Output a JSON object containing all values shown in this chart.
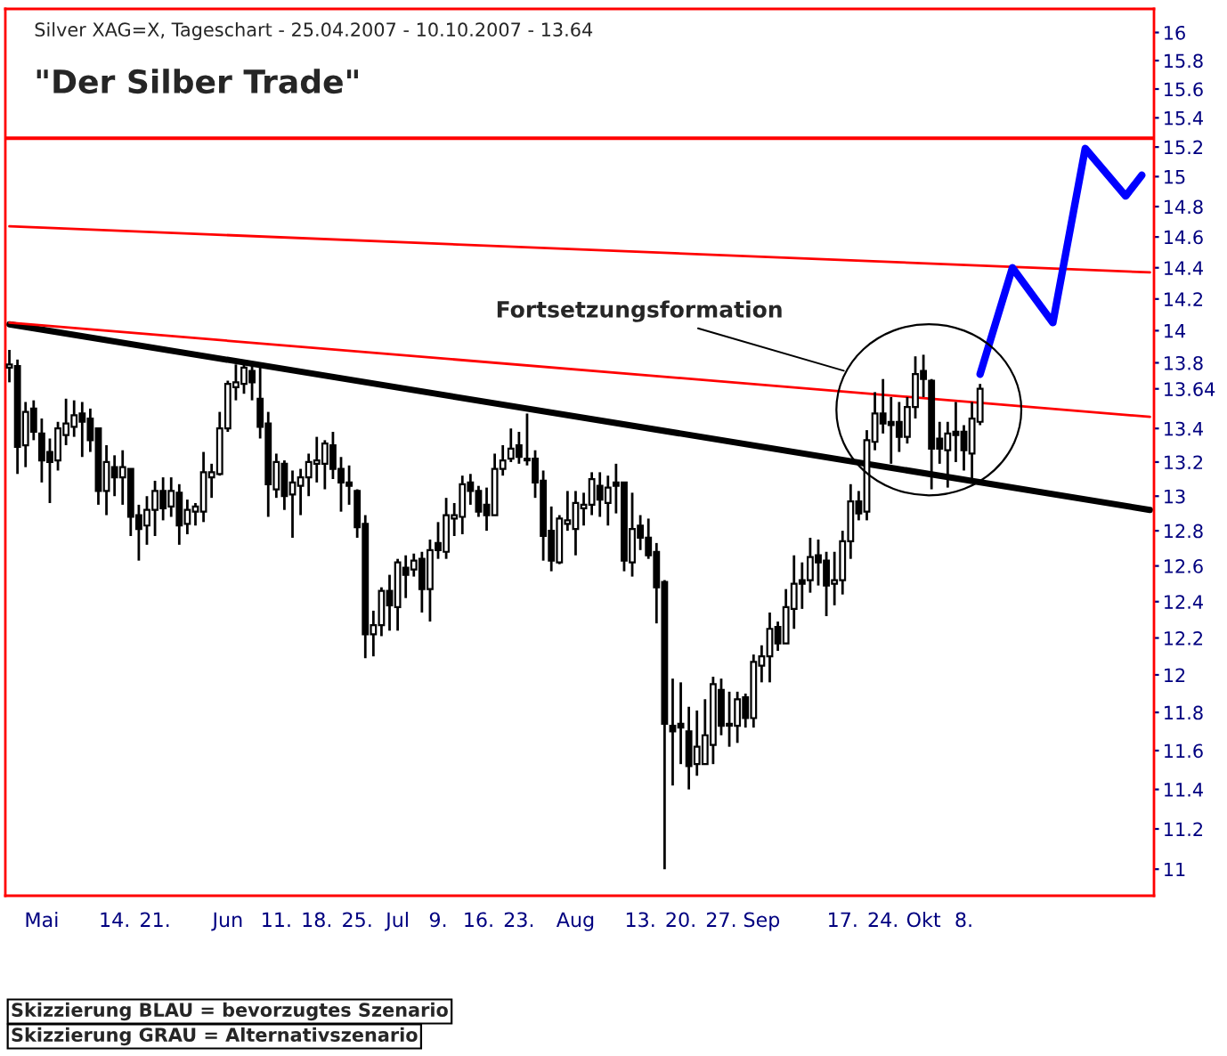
{
  "chart_data": {
    "type": "candlestick",
    "title": "\"Der Silber Trade\"",
    "subtitle": "Silver XAG=X, Tageschart - 25.04.2007 - 10.10.2007 - 13.64",
    "annotations": [
      "Fortsetzungsformation",
      "Skizzierung BLAU = bevorzugtes Szenario",
      "Skizzierung GRAU = Alternativszenario"
    ],
    "categories": [
      null,
      null,
      null,
      null,
      "Mai",
      null,
      null,
      null,
      null,
      null,
      null,
      null,
      null,
      "14.",
      null,
      null,
      null,
      null,
      "21.",
      null,
      null,
      null,
      null,
      null,
      null,
      null,
      null,
      "Jun",
      null,
      null,
      null,
      null,
      null,
      "11.",
      null,
      null,
      null,
      null,
      "18.",
      null,
      null,
      null,
      null,
      "25.",
      null,
      null,
      null,
      null,
      "Jul",
      null,
      null,
      null,
      null,
      "9.",
      null,
      null,
      null,
      null,
      "16.",
      null,
      null,
      null,
      null,
      "23.",
      null,
      null,
      null,
      null,
      null,
      null,
      "Aug",
      null,
      null,
      null,
      null,
      null,
      null,
      null,
      "13.",
      null,
      null,
      null,
      null,
      "20.",
      null,
      null,
      null,
      null,
      "27.",
      null,
      null,
      null,
      null,
      "Sep",
      null,
      null,
      null,
      null,
      null,
      null,
      null,
      null,
      null,
      "17.",
      null,
      null,
      null,
      null,
      "24.",
      null,
      null,
      null,
      null,
      "Okt",
      null,
      null,
      null,
      null,
      "8.",
      null,
      null,
      null,
      null,
      null,
      null,
      null,
      null,
      null,
      null,
      null,
      null,
      null,
      null,
      null,
      null,
      null,
      null,
      null,
      null,
      null,
      null,
      null
    ],
    "ohlc": [
      [
        13.77,
        13.88,
        13.68,
        13.79
      ],
      [
        13.78,
        13.82,
        13.13,
        13.29
      ],
      [
        13.3,
        13.56,
        13.17,
        13.5
      ],
      [
        13.52,
        13.57,
        13.33,
        13.38
      ],
      [
        13.37,
        13.46,
        13.08,
        13.21
      ],
      [
        13.26,
        13.34,
        12.96,
        13.2
      ],
      [
        13.21,
        13.44,
        13.15,
        13.4
      ],
      [
        13.36,
        13.58,
        13.3,
        13.43
      ],
      [
        13.41,
        13.57,
        13.35,
        13.48
      ],
      [
        13.49,
        13.56,
        13.23,
        13.44
      ],
      [
        13.46,
        13.52,
        13.26,
        13.33
      ],
      [
        13.4,
        13.4,
        12.95,
        13.03
      ],
      [
        13.03,
        13.3,
        12.89,
        13.2
      ],
      [
        13.17,
        13.24,
        13.0,
        13.11
      ],
      [
        13.11,
        13.27,
        12.95,
        13.17
      ],
      [
        13.16,
        13.16,
        12.77,
        12.88
      ],
      [
        12.89,
        12.95,
        12.63,
        12.81
      ],
      [
        12.83,
        13.0,
        12.72,
        12.92
      ],
      [
        12.92,
        13.09,
        12.77,
        13.03
      ],
      [
        13.03,
        13.11,
        12.86,
        12.93
      ],
      [
        12.94,
        13.11,
        12.88,
        13.03
      ],
      [
        13.02,
        13.07,
        12.72,
        12.83
      ],
      [
        12.84,
        12.98,
        12.78,
        12.92
      ],
      [
        12.91,
        12.96,
        12.83,
        12.94
      ],
      [
        12.91,
        13.26,
        12.85,
        13.14
      ],
      [
        13.11,
        13.19,
        12.99,
        13.14
      ],
      [
        13.13,
        13.5,
        13.12,
        13.4
      ],
      [
        13.4,
        13.69,
        13.38,
        13.67
      ],
      [
        13.65,
        13.79,
        13.57,
        13.68
      ],
      [
        13.67,
        13.8,
        13.61,
        13.77
      ],
      [
        13.75,
        13.79,
        13.57,
        13.68
      ],
      [
        13.58,
        13.78,
        13.34,
        13.41
      ],
      [
        13.43,
        13.5,
        12.88,
        13.07
      ],
      [
        13.04,
        13.25,
        12.99,
        13.2
      ],
      [
        13.19,
        13.21,
        12.92,
        13.0
      ],
      [
        13.01,
        13.15,
        12.76,
        13.08
      ],
      [
        13.06,
        13.16,
        12.89,
        13.11
      ],
      [
        13.11,
        13.25,
        13.0,
        13.2
      ],
      [
        13.19,
        13.35,
        13.08,
        13.21
      ],
      [
        13.19,
        13.33,
        13.04,
        13.31
      ],
      [
        13.3,
        13.38,
        13.1,
        13.16
      ],
      [
        13.16,
        13.23,
        12.91,
        13.08
      ],
      [
        13.08,
        13.18,
        12.95,
        13.06
      ],
      [
        13.03,
        13.04,
        12.76,
        12.82
      ],
      [
        12.84,
        12.89,
        12.09,
        12.22
      ],
      [
        12.22,
        12.35,
        12.1,
        12.27
      ],
      [
        12.27,
        12.48,
        12.21,
        12.46
      ],
      [
        12.46,
        12.55,
        12.24,
        12.38
      ],
      [
        12.37,
        12.64,
        12.24,
        12.62
      ],
      [
        12.59,
        12.66,
        12.42,
        12.55
      ],
      [
        12.58,
        12.67,
        12.54,
        12.63
      ],
      [
        12.64,
        12.68,
        12.34,
        12.47
      ],
      [
        12.47,
        12.75,
        12.29,
        12.69
      ],
      [
        12.73,
        12.85,
        12.64,
        12.69
      ],
      [
        12.68,
        12.99,
        12.64,
        12.89
      ],
      [
        12.87,
        12.96,
        12.77,
        12.89
      ],
      [
        12.88,
        13.12,
        12.78,
        13.07
      ],
      [
        13.08,
        13.13,
        12.95,
        13.03
      ],
      [
        13.03,
        13.06,
        12.88,
        12.91
      ],
      [
        12.95,
        13.05,
        12.8,
        12.89
      ],
      [
        12.89,
        13.25,
        12.89,
        13.16
      ],
      [
        13.16,
        13.3,
        13.12,
        13.21
      ],
      [
        13.22,
        13.4,
        13.2,
        13.28
      ],
      [
        13.3,
        13.38,
        13.19,
        13.23
      ],
      [
        13.22,
        13.49,
        13.18,
        13.21
      ],
      [
        13.22,
        13.27,
        12.99,
        13.08
      ],
      [
        13.09,
        13.15,
        12.63,
        12.77
      ],
      [
        12.8,
        12.94,
        12.57,
        12.63
      ],
      [
        12.62,
        12.89,
        12.61,
        12.87
      ],
      [
        12.84,
        13.03,
        12.8,
        12.86
      ],
      [
        12.81,
        13.03,
        12.66,
        12.96
      ],
      [
        12.93,
        13.02,
        12.83,
        12.95
      ],
      [
        12.95,
        13.14,
        12.89,
        13.1
      ],
      [
        13.06,
        13.14,
        12.88,
        12.98
      ],
      [
        12.96,
        13.12,
        12.83,
        13.05
      ],
      [
        13.08,
        13.19,
        12.9,
        13.06
      ],
      [
        13.08,
        13.08,
        12.57,
        12.63
      ],
      [
        12.62,
        13.02,
        12.54,
        12.81
      ],
      [
        12.83,
        12.89,
        12.69,
        12.76
      ],
      [
        12.76,
        12.87,
        12.64,
        12.66
      ],
      [
        12.68,
        12.73,
        12.28,
        12.48
      ],
      [
        12.51,
        12.52,
        11.0,
        11.74
      ],
      [
        11.73,
        11.98,
        11.42,
        11.7
      ],
      [
        11.74,
        11.96,
        11.53,
        11.72
      ],
      [
        11.7,
        11.83,
        11.4,
        11.52
      ],
      [
        11.53,
        11.81,
        11.47,
        11.62
      ],
      [
        11.53,
        11.87,
        11.53,
        11.68
      ],
      [
        11.63,
        11.99,
        11.53,
        11.95
      ],
      [
        11.92,
        11.98,
        11.68,
        11.73
      ],
      [
        11.74,
        11.91,
        11.62,
        11.73
      ],
      [
        11.73,
        11.91,
        11.64,
        11.87
      ],
      [
        11.88,
        11.9,
        11.72,
        11.77
      ],
      [
        11.77,
        12.11,
        11.72,
        12.07
      ],
      [
        12.05,
        12.16,
        11.96,
        12.1
      ],
      [
        12.1,
        12.34,
        11.96,
        12.25
      ],
      [
        12.26,
        12.29,
        12.13,
        12.17
      ],
      [
        12.17,
        12.47,
        12.17,
        12.37
      ],
      [
        12.36,
        12.66,
        12.25,
        12.5
      ],
      [
        12.52,
        12.62,
        12.36,
        12.5
      ],
      [
        12.52,
        12.76,
        12.45,
        12.65
      ],
      [
        12.66,
        12.75,
        12.49,
        12.62
      ],
      [
        12.63,
        12.68,
        12.32,
        12.49
      ],
      [
        12.5,
        12.68,
        12.38,
        12.52
      ],
      [
        12.52,
        12.8,
        12.44,
        12.74
      ],
      [
        12.74,
        13.07,
        12.64,
        12.97
      ],
      [
        12.97,
        13.03,
        12.86,
        12.9
      ],
      [
        12.91,
        13.39,
        12.86,
        13.33
      ],
      [
        13.32,
        13.62,
        13.27,
        13.49
      ],
      [
        13.49,
        13.7,
        13.37,
        13.43
      ],
      [
        13.44,
        13.59,
        13.19,
        13.42
      ],
      [
        13.44,
        13.56,
        13.26,
        13.35
      ],
      [
        13.35,
        13.59,
        13.31,
        13.53
      ],
      [
        13.53,
        13.84,
        13.46,
        13.73
      ],
      [
        13.75,
        13.85,
        13.59,
        13.7
      ],
      [
        13.69,
        13.7,
        13.04,
        13.28
      ],
      [
        13.34,
        13.44,
        13.19,
        13.28
      ],
      [
        13.27,
        13.44,
        13.05,
        13.37
      ],
      [
        13.38,
        13.56,
        13.2,
        13.36
      ],
      [
        13.38,
        13.42,
        13.15,
        13.27
      ],
      [
        13.25,
        13.56,
        13.09,
        13.46
      ],
      [
        13.44,
        13.67,
        13.42,
        13.64
      ],
      null,
      null,
      null,
      null,
      null,
      null,
      null,
      null,
      null,
      null,
      null,
      null,
      null,
      null,
      null,
      null,
      null,
      null,
      null,
      null,
      null
    ],
    "series": [
      {
        "type": "line",
        "color": "#000000",
        "values": [
          14.04,
          null,
          null,
          null,
          null,
          null,
          null,
          null,
          null,
          null,
          null,
          null,
          null,
          null,
          null,
          null,
          null,
          null,
          null,
          null,
          null,
          null,
          null,
          null,
          null,
          null,
          null,
          null,
          null,
          null,
          null,
          null,
          null,
          null,
          null,
          null,
          null,
          null,
          null,
          null,
          null,
          null,
          null,
          null,
          null,
          null,
          null,
          null,
          null,
          null,
          null,
          null,
          null,
          null,
          null,
          null,
          null,
          null,
          null,
          null,
          null,
          null,
          null,
          null,
          null,
          null,
          null,
          null,
          null,
          null,
          null,
          null,
          null,
          null,
          null,
          null,
          null,
          null,
          null,
          null,
          null,
          null,
          null,
          null,
          null,
          null,
          null,
          null,
          null,
          null,
          null,
          null,
          null,
          null,
          null,
          null,
          null,
          null,
          null,
          null,
          null,
          null,
          null,
          null,
          null,
          null,
          null,
          null,
          null,
          null,
          null,
          null,
          null,
          null,
          null,
          null,
          null,
          null,
          null,
          null,
          null,
          null,
          null,
          null,
          null,
          null,
          null,
          null,
          null,
          null,
          null,
          null,
          null,
          null,
          null,
          null,
          null,
          null,
          null,
          null,
          null,
          12.92
        ]
      },
      {
        "type": "line",
        "color": "#ff0000",
        "values": [
          14.05,
          null,
          null,
          null,
          null,
          null,
          null,
          null,
          null,
          null,
          null,
          null,
          null,
          null,
          null,
          null,
          null,
          null,
          null,
          null,
          null,
          null,
          null,
          null,
          null,
          null,
          null,
          null,
          null,
          null,
          null,
          null,
          null,
          null,
          null,
          null,
          null,
          null,
          null,
          null,
          null,
          null,
          null,
          null,
          null,
          null,
          null,
          null,
          null,
          null,
          null,
          null,
          null,
          null,
          null,
          null,
          null,
          null,
          null,
          null,
          null,
          null,
          null,
          null,
          null,
          null,
          null,
          null,
          null,
          null,
          null,
          null,
          null,
          null,
          null,
          null,
          null,
          null,
          null,
          null,
          null,
          null,
          null,
          null,
          null,
          null,
          null,
          null,
          null,
          null,
          null,
          null,
          null,
          null,
          null,
          null,
          null,
          null,
          null,
          null,
          null,
          null,
          null,
          null,
          null,
          null,
          null,
          null,
          null,
          null,
          null,
          null,
          null,
          null,
          null,
          null,
          null,
          null,
          null,
          null,
          null,
          null,
          null,
          null,
          null,
          null,
          null,
          null,
          null,
          null,
          null,
          null,
          null,
          null,
          null,
          null,
          null,
          null,
          null,
          null,
          null,
          13.47
        ]
      },
      {
        "type": "line",
        "color": "#ff0000",
        "values": [
          14.67,
          null,
          null,
          null,
          null,
          null,
          null,
          null,
          null,
          null,
          null,
          null,
          null,
          null,
          null,
          null,
          null,
          null,
          null,
          null,
          null,
          null,
          null,
          null,
          null,
          null,
          null,
          null,
          null,
          null,
          null,
          null,
          null,
          null,
          null,
          null,
          null,
          null,
          null,
          null,
          null,
          null,
          null,
          null,
          null,
          null,
          null,
          null,
          null,
          null,
          null,
          null,
          null,
          null,
          null,
          null,
          null,
          null,
          null,
          null,
          null,
          null,
          null,
          null,
          null,
          null,
          null,
          null,
          null,
          null,
          null,
          null,
          null,
          null,
          null,
          null,
          null,
          null,
          null,
          null,
          null,
          null,
          null,
          null,
          null,
          null,
          null,
          null,
          null,
          null,
          null,
          null,
          null,
          null,
          null,
          null,
          null,
          null,
          null,
          null,
          null,
          null,
          null,
          null,
          null,
          null,
          null,
          null,
          null,
          null,
          null,
          null,
          null,
          null,
          null,
          null,
          null,
          null,
          null,
          null,
          null,
          null,
          null,
          null,
          null,
          null,
          null,
          null,
          null,
          null,
          null,
          null,
          null,
          null,
          null,
          null,
          null,
          null,
          null,
          null,
          null,
          14.37
        ]
      },
      {
        "type": "line",
        "color": "#0000ff",
        "values": [
          null,
          null,
          null,
          null,
          null,
          null,
          null,
          null,
          null,
          null,
          null,
          null,
          null,
          null,
          null,
          null,
          null,
          null,
          null,
          null,
          null,
          null,
          null,
          null,
          null,
          null,
          null,
          null,
          null,
          null,
          null,
          null,
          null,
          null,
          null,
          null,
          null,
          null,
          null,
          null,
          null,
          null,
          null,
          null,
          null,
          null,
          null,
          null,
          null,
          null,
          null,
          null,
          null,
          null,
          null,
          null,
          null,
          null,
          null,
          null,
          null,
          null,
          null,
          null,
          null,
          null,
          null,
          null,
          null,
          null,
          null,
          null,
          null,
          null,
          null,
          null,
          null,
          null,
          null,
          null,
          null,
          null,
          null,
          null,
          null,
          null,
          null,
          null,
          null,
          null,
          null,
          null,
          null,
          null,
          null,
          null,
          null,
          null,
          null,
          null,
          null,
          null,
          null,
          null,
          null,
          null,
          null,
          null,
          null,
          null,
          null,
          null,
          null,
          null,
          null,
          null,
          null,
          null,
          null,
          null,
          13.73,
          null,
          null,
          null,
          14.4,
          null,
          null,
          null,
          null,
          14.05,
          null,
          null,
          null,
          15.19,
          null,
          null,
          null,
          null,
          14.87,
          null,
          15.01,
          null
        ]
      }
    ],
    "ref_lines": [
      {
        "axis": "y",
        "value": 15.26,
        "color": "#ff0000"
      }
    ],
    "log": true,
    "ylim": [
      10.87,
      16.17
    ],
    "yticks": [
      11,
      11.2,
      11.4,
      11.6,
      11.8,
      12,
      12.2,
      12.4,
      12.6,
      12.8,
      13,
      13.2,
      13.4,
      {
        "value": 13.64,
        "label": "13.64"
      },
      13.8,
      14,
      14.2,
      14.4,
      14.6,
      14.8,
      15,
      15.2,
      15.4,
      15.6,
      15.8,
      16
    ],
    "grid": false
  }
}
